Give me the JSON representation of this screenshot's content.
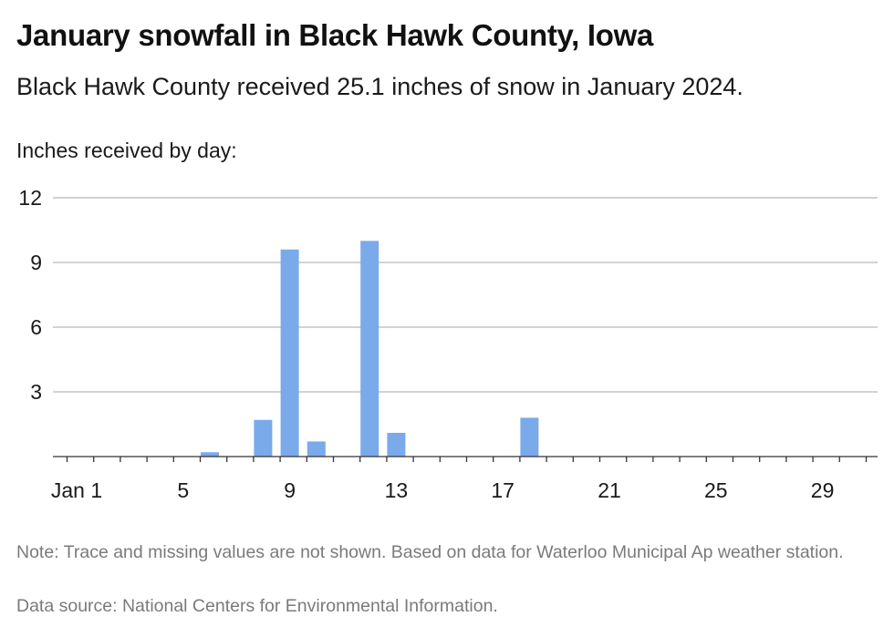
{
  "header": {
    "title": "January snowfall in Black Hawk County, Iowa",
    "subtitle": "Black Hawk County received 25.1 inches of snow in January 2024.",
    "axis_caption": "Inches received by day:"
  },
  "footer": {
    "note": "Note: Trace and missing values are not shown. Based on data for Waterloo Municipal Ap weather station.",
    "source": "Data source: National Centers for Environmental Information."
  },
  "colors": {
    "bar": "#7aaaea",
    "gridline": "#b8b8b8",
    "axis": "#333333"
  },
  "chart_data": {
    "type": "bar",
    "title": "January snowfall in Black Hawk County, Iowa",
    "subtitle": "Black Hawk County received 25.1 inches of snow in January 2024.",
    "xlabel": "",
    "ylabel": "Inches received by day:",
    "ylim": [
      0,
      12
    ],
    "yticks": [
      3,
      6,
      9,
      12
    ],
    "x_range": [
      1,
      31
    ],
    "xticks": [
      {
        "day": 1,
        "label": "Jan 1"
      },
      {
        "day": 5,
        "label": "5"
      },
      {
        "day": 9,
        "label": "9"
      },
      {
        "day": 13,
        "label": "13"
      },
      {
        "day": 17,
        "label": "17"
      },
      {
        "day": 21,
        "label": "21"
      },
      {
        "day": 25,
        "label": "25"
      },
      {
        "day": 29,
        "label": "29"
      }
    ],
    "grid": true,
    "series": [
      {
        "days": [
          6,
          8,
          9,
          10,
          12,
          13,
          18
        ],
        "values": [
          0.2,
          1.7,
          9.6,
          0.7,
          10.0,
          1.1,
          1.8
        ]
      }
    ]
  }
}
